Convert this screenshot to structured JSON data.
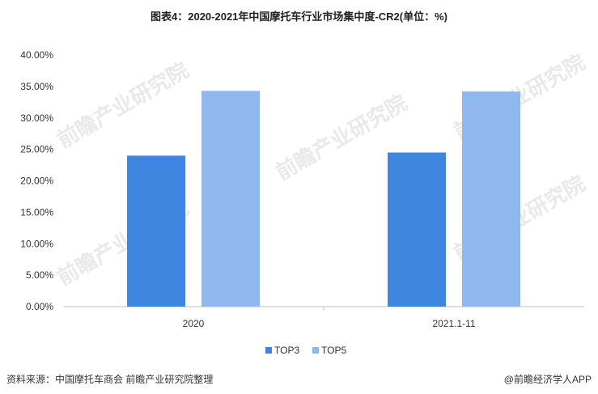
{
  "title": "图表4：2020-2021年中国摩托车行业市场集中度-CR2(单位：%)",
  "watermark": "前瞻产业研究院",
  "source": "资料来源：中国摩托车商会 前瞻产业研究院整理",
  "brand": "@前瞻经济学人APP",
  "colors": {
    "TOP3": "#3f86e0",
    "TOP5": "#8fb8ef",
    "axis": "#bfbfbf"
  },
  "chart_data": {
    "type": "bar",
    "categories": [
      "2020",
      "2021.1-11"
    ],
    "series": [
      {
        "name": "TOP3",
        "values": [
          24.0,
          24.5
        ]
      },
      {
        "name": "TOP5",
        "values": [
          34.3,
          34.2
        ]
      }
    ],
    "yticks": [
      "0.00%",
      "5.00%",
      "10.00%",
      "15.00%",
      "20.00%",
      "25.00%",
      "30.00%",
      "35.00%",
      "40.00%"
    ],
    "ylim": [
      0,
      40
    ],
    "legend": "bottom-center",
    "grid": false
  }
}
